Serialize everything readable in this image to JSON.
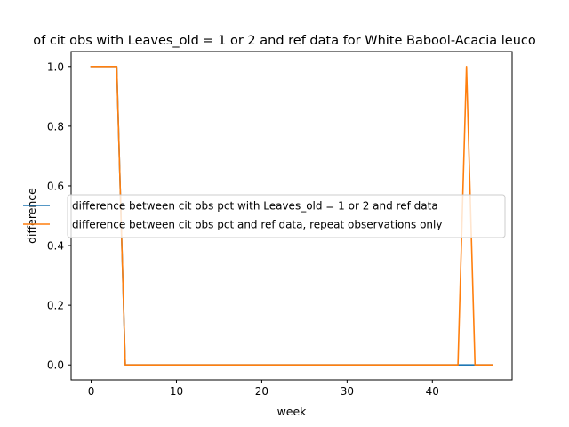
{
  "chart_data": {
    "type": "line",
    "title": "of cit obs with Leaves_old = 1 or 2 and ref data for White Babool-Acacia leuco",
    "xlabel": "week",
    "ylabel": "difference",
    "xlim": [
      -2.35,
      49.35
    ],
    "ylim": [
      -0.05,
      1.05
    ],
    "xticks": [
      0,
      10,
      20,
      30,
      40
    ],
    "xtick_labels": [
      "0",
      "10",
      "20",
      "30",
      "40"
    ],
    "yticks": [
      0.0,
      0.2,
      0.4,
      0.6,
      0.8,
      1.0
    ],
    "ytick_labels": [
      "0.0",
      "0.2",
      "0.4",
      "0.6",
      "0.8",
      "1.0"
    ],
    "grid": false,
    "legend_position": "center",
    "series": [
      {
        "name": "difference between cit obs pct with Leaves_old = 1 or 2 and ref data",
        "color": "#1f77b4",
        "x": [
          0,
          1,
          2,
          3,
          4,
          5,
          6,
          7,
          8,
          9,
          10,
          11,
          12,
          13,
          14,
          15,
          16,
          17,
          18,
          19,
          20,
          21,
          22,
          23,
          24,
          25,
          26,
          27,
          28,
          29,
          30,
          31,
          32,
          33,
          34,
          35,
          36,
          37,
          38,
          39,
          40,
          41,
          42,
          43,
          44,
          45,
          46,
          47
        ],
        "values": [
          1,
          1,
          1,
          1,
          0,
          0,
          0,
          0,
          0,
          0,
          0,
          0,
          0,
          0,
          0,
          0,
          0,
          0,
          0,
          0,
          0,
          0,
          0,
          0,
          0,
          0,
          0,
          0,
          0,
          0,
          0,
          0,
          0,
          0,
          0,
          0,
          0,
          0,
          0,
          0,
          0,
          0,
          0,
          0,
          0,
          0,
          0,
          0
        ]
      },
      {
        "name": "difference between cit obs pct and ref data, repeat observations only",
        "color": "#ff7f0e",
        "x": [
          0,
          1,
          2,
          3,
          4,
          5,
          6,
          7,
          8,
          9,
          10,
          11,
          12,
          13,
          14,
          15,
          16,
          17,
          18,
          19,
          20,
          21,
          22,
          23,
          24,
          25,
          26,
          27,
          28,
          29,
          30,
          31,
          32,
          33,
          34,
          35,
          36,
          37,
          38,
          39,
          40,
          41,
          42,
          43,
          44,
          45,
          46,
          47
        ],
        "values": [
          1,
          1,
          1,
          1,
          0,
          0,
          0,
          0,
          0,
          0,
          0,
          0,
          0,
          0,
          0,
          0,
          0,
          0,
          0,
          0,
          0,
          0,
          0,
          0,
          0,
          0,
          0,
          0,
          0,
          0,
          0,
          0,
          0,
          0,
          0,
          0,
          0,
          0,
          0,
          0,
          0,
          0,
          0,
          0,
          1,
          0,
          0,
          0
        ]
      }
    ]
  }
}
